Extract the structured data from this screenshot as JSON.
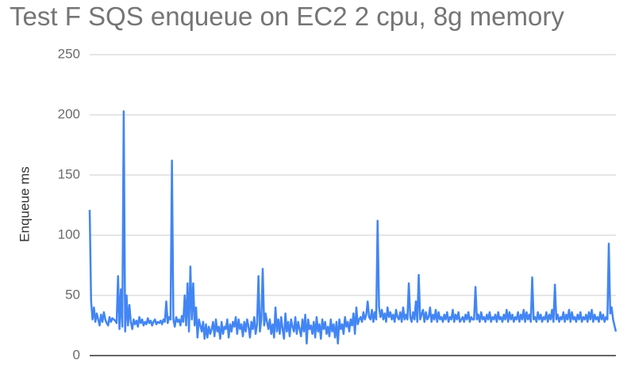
{
  "chart_data": {
    "type": "line",
    "title": "Test F SQS enqueue on EC2 2 cpu, 8g memory",
    "xlabel": "",
    "ylabel": "Enqueue ms",
    "ylim": [
      0,
      250
    ],
    "yticks": [
      "0",
      "50",
      "100",
      "150",
      "200",
      "250"
    ],
    "grid": true,
    "legend": "none",
    "series": [
      {
        "color": "#4285f4",
        "values": [
          121,
          45,
          30,
          40,
          28,
          35,
          30,
          25,
          34,
          28,
          36,
          30,
          27,
          25,
          32,
          28,
          31,
          30,
          29,
          27,
          66,
          22,
          55,
          24,
          203,
          20,
          50,
          25,
          42,
          28,
          22,
          30,
          26,
          29,
          24,
          32,
          27,
          30,
          25,
          28,
          26,
          31,
          27,
          29,
          25,
          28,
          30,
          26,
          28,
          27,
          29,
          26,
          30,
          28,
          45,
          27,
          32,
          30,
          162,
          30,
          24,
          32,
          28,
          30,
          25,
          33,
          28,
          50,
          25,
          60,
          20,
          74,
          30,
          60,
          25,
          40,
          15,
          30,
          25,
          20,
          28,
          14,
          26,
          15,
          24,
          18,
          22,
          28,
          16,
          30,
          20,
          24,
          14,
          28,
          18,
          24,
          22,
          30,
          15,
          26,
          20,
          28,
          24,
          32,
          18,
          30,
          22,
          26,
          16,
          28,
          20,
          30,
          24,
          15,
          28,
          22,
          32,
          18,
          26,
          66,
          20,
          30,
          72,
          25,
          35,
          28,
          22,
          30,
          18,
          26,
          15,
          40,
          20,
          30,
          18,
          32,
          22,
          14,
          35,
          20,
          28,
          16,
          30,
          24,
          20,
          32,
          18,
          28,
          22,
          16,
          30,
          20,
          34,
          10,
          30,
          22,
          25,
          18,
          28,
          15,
          32,
          20,
          26,
          14,
          30,
          22,
          28,
          18,
          24,
          16,
          30,
          20,
          26,
          15,
          28,
          10,
          30,
          22,
          26,
          18,
          32,
          24,
          28,
          20,
          30,
          25,
          35,
          18,
          40,
          26,
          30,
          32,
          28,
          36,
          30,
          34,
          45,
          32,
          30,
          38,
          28,
          36,
          30,
          112,
          40,
          32,
          38,
          30,
          35,
          28,
          40,
          32,
          36,
          30,
          34,
          28,
          38,
          32,
          30,
          36,
          28,
          40,
          30,
          34,
          30,
          60,
          32,
          28,
          36,
          30,
          45,
          28,
          67,
          30,
          34,
          38,
          28,
          36,
          30,
          32,
          40,
          28,
          34,
          30,
          38,
          28,
          36,
          30,
          32,
          28,
          34,
          30,
          36,
          28,
          32,
          30,
          38,
          28,
          34,
          30,
          36,
          28,
          30,
          32,
          28,
          34,
          30,
          36,
          28,
          32,
          30,
          30,
          57,
          30,
          34,
          28,
          36,
          30,
          32,
          28,
          34,
          30,
          36,
          28,
          32,
          30,
          34,
          28,
          36,
          30,
          32,
          28,
          34,
          30,
          38,
          28,
          36,
          30,
          34,
          28,
          32,
          30,
          36,
          28,
          34,
          30,
          38,
          28,
          36,
          30,
          34,
          28,
          65,
          30,
          32,
          28,
          36,
          30,
          34,
          28,
          32,
          30,
          36,
          28,
          34,
          30,
          38,
          28,
          59,
          30,
          34,
          28,
          32,
          30,
          36,
          28,
          34,
          30,
          38,
          28,
          36,
          30,
          32,
          28,
          34,
          30,
          36,
          28,
          32,
          30,
          34,
          28,
          36,
          30,
          38,
          28,
          34,
          30,
          32,
          28,
          36,
          30,
          34,
          28,
          32,
          30,
          93,
          35,
          40,
          30,
          25,
          20
        ]
      }
    ]
  }
}
